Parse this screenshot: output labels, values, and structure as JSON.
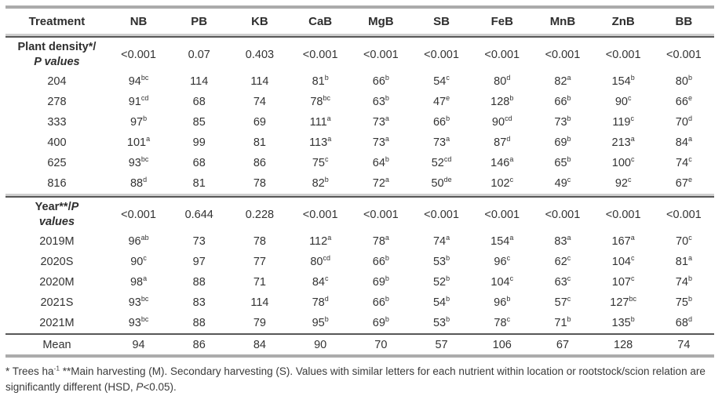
{
  "table": {
    "columns": [
      "Treatment",
      "NB",
      "PB",
      "KB",
      "CaB",
      "MgB",
      "SB",
      "FeB",
      "MnB",
      "ZnB",
      "BB"
    ],
    "sections": [
      {
        "label_line1": [
          {
            "t": "Plant density*/"
          }
        ],
        "label_line2": [
          {
            "t": "P values",
            "i": true
          }
        ],
        "p_values": [
          "<0.001",
          "0.07",
          "0.403",
          "<0.001",
          "<0.001",
          "<0.001",
          "<0.001",
          "<0.001",
          "<0.001",
          "<0.001"
        ],
        "rows": [
          {
            "label": "204",
            "cells": [
              "94^bc",
              "114",
              "114",
              "81^b",
              "66^b",
              "54^c",
              "80^d",
              "82^a",
              "154^b",
              "80^b"
            ]
          },
          {
            "label": "278",
            "cells": [
              "91^cd",
              "68",
              "74",
              "78^bc",
              "63^b",
              "47^e",
              "128^b",
              "66^b",
              "90^c",
              "66^e"
            ]
          },
          {
            "label": "333",
            "cells": [
              "97^b",
              "85",
              "69",
              "111^a",
              "73^a",
              "66^b",
              "90^cd",
              "73^b",
              "119^c",
              "70^d"
            ]
          },
          {
            "label": "400",
            "cells": [
              "101^a",
              "99",
              "81",
              "113^a",
              "73^a",
              "73^a",
              "87^d",
              "69^b",
              "213^a",
              "84^a"
            ]
          },
          {
            "label": "625",
            "cells": [
              "93^bc",
              "68",
              "86",
              "75^c",
              "64^b",
              "52^cd",
              "146^a",
              "65^b",
              "100^c",
              "74^c"
            ]
          },
          {
            "label": "816",
            "cells": [
              "88^d",
              "81",
              "78",
              "82^b",
              "72^a",
              "50^de",
              "102^c",
              "49^c",
              "92^c",
              "67^e"
            ]
          }
        ]
      },
      {
        "label_line1": [
          {
            "t": "Year**/"
          },
          {
            "t": "P",
            "i": true
          }
        ],
        "label_line2": [
          {
            "t": "values",
            "i": true
          }
        ],
        "p_values": [
          "<0.001",
          "0.644",
          "0.228",
          "<0.001",
          "<0.001",
          "<0.001",
          "<0.001",
          "<0.001",
          "<0.001",
          "<0.001"
        ],
        "rows": [
          {
            "label": "2019M",
            "cells": [
              "96^ab",
              "73",
              "78",
              "112^a",
              "78^a",
              "74^a",
              "154^a",
              "83^a",
              "167^a",
              "70^c"
            ]
          },
          {
            "label": "2020S",
            "cells": [
              "90^c",
              "97",
              "77",
              "80^cd",
              "66^b",
              "53^b",
              "96^c",
              "62^c",
              "104^c",
              "81^a"
            ]
          },
          {
            "label": "2020M",
            "cells": [
              "98^a",
              "88",
              "71",
              "84^c",
              "69^b",
              "52^b",
              "104^c",
              "63^c",
              "107^c",
              "74^b"
            ]
          },
          {
            "label": "2021S",
            "cells": [
              "93^bc",
              "83",
              "114",
              "78^d",
              "66^b",
              "54^b",
              "96^b",
              "57^c",
              "127^bc",
              "75^b"
            ]
          },
          {
            "label": "2021M",
            "cells": [
              "93^bc",
              "88",
              "79",
              "95^b",
              "69^b",
              "53^b",
              "78^c",
              "71^b",
              "135^b",
              "68^d"
            ]
          }
        ]
      }
    ],
    "mean_row": {
      "label": "Mean",
      "values": [
        "94",
        "86",
        "84",
        "90",
        "70",
        "57",
        "106",
        "67",
        "128",
        "74"
      ]
    }
  },
  "footnote_segments": [
    {
      "t": "* Trees ha"
    },
    {
      "t": "-1",
      "sup": true
    },
    {
      "t": " **Main harvesting (M). Secondary harvesting (S). Values with similar letters for each nutrient within location or rootstock/scion relation are significantly different (HSD, "
    },
    {
      "t": "P",
      "i": true
    },
    {
      "t": "<0.05)."
    }
  ],
  "colors": {
    "rule_light": "#ababab",
    "rule_dark": "#575757",
    "text": "#333333"
  }
}
